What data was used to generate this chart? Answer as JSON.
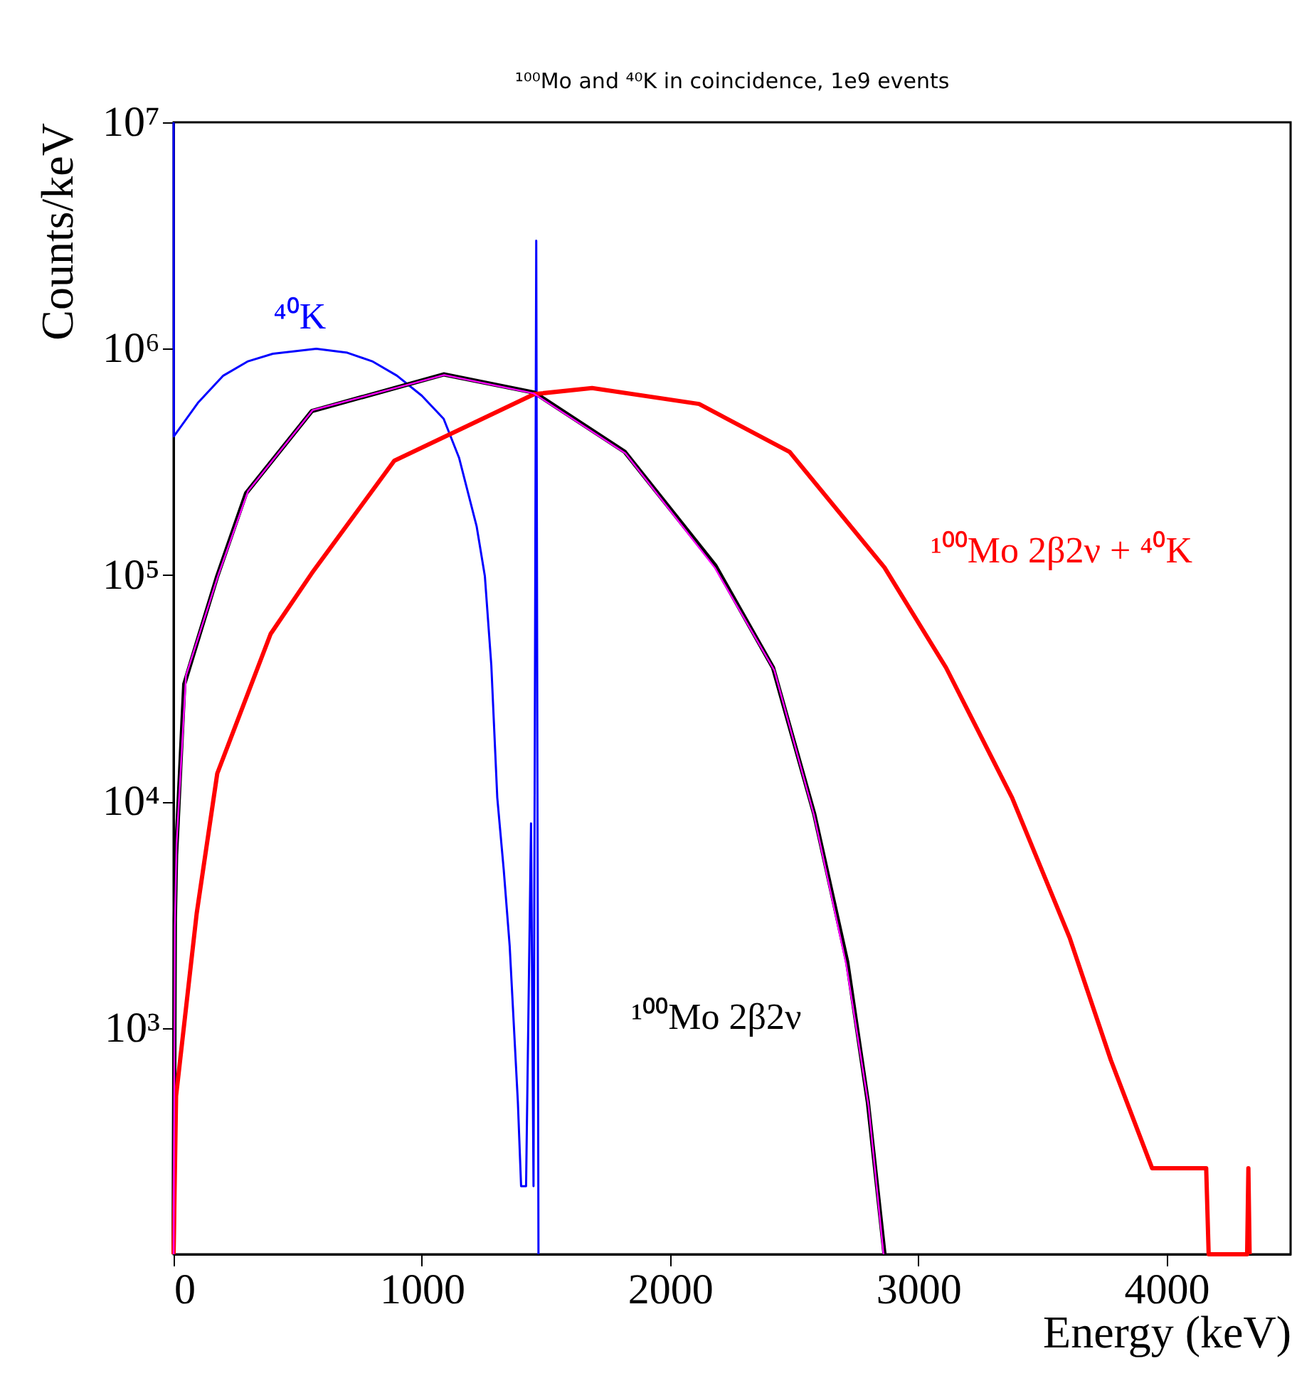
{
  "chart_data": {
    "type": "line",
    "title": "¹⁰⁰Mo and ⁴⁰K in coincidence, 1e9 events",
    "xlabel": "Energy (keV)",
    "ylabel": "Counts/keV",
    "log": "y",
    "grid": false,
    "marker": "none",
    "line_style": "solid",
    "xlim": [
      0,
      4500
    ],
    "xticks": [
      0,
      1000,
      2000,
      3000,
      4000
    ],
    "ylim": [
      100,
      10000000
    ],
    "yticks": [
      {
        "value": 1000,
        "label": "10³"
      },
      {
        "value": 10000,
        "label": "10⁴"
      },
      {
        "value": 100000,
        "label": "10⁵"
      },
      {
        "value": 1000000,
        "label": "10⁶"
      },
      {
        "value": 10000000,
        "label": "10⁷"
      }
    ],
    "series": [
      {
        "color": "#0000ff",
        "x": [
          0,
          1,
          100,
          200,
          300,
          400,
          575,
          700,
          800,
          900,
          1000,
          1088,
          1150,
          1221,
          1254,
          1280,
          1304,
          1330,
          1354,
          1387,
          1400,
          1420,
          1440,
          1450,
          1461,
          1470
        ],
        "values": [
          10000000,
          410000,
          580000,
          760000,
          880000,
          950000,
          1000000,
          960000,
          880000,
          760000,
          620000,
          490000,
          330000,
          164000,
          99000,
          40000,
          10400,
          5000,
          2300,
          470,
          200,
          200,
          8000,
          200,
          3000000,
          100
        ]
      },
      {
        "color": "#000000",
        "x": [
          0,
          5,
          10,
          43,
          176,
          292,
          557,
          1088,
          1453,
          1818,
          2183,
          2415,
          2581,
          2714,
          2797,
          2864
        ],
        "values": [
          100,
          3000,
          5800,
          33000,
          99000,
          230000,
          530000,
          770000,
          640000,
          350000,
          110000,
          39000,
          8800,
          1950,
          470,
          100
        ]
      },
      {
        "color": "#ff0000",
        "x": [
          0,
          10,
          93,
          176,
          391,
          557,
          889,
          1453,
          1686,
          2117,
          2482,
          2864,
          3112,
          3378,
          3610,
          3776,
          3942,
          4139,
          4160,
          4170,
          4325,
          4330,
          4335
        ],
        "values": [
          100,
          500,
          3200,
          13300,
          55000,
          102000,
          320000,
          630000,
          670000,
          570000,
          350000,
          108000,
          39000,
          10400,
          2500,
          720,
          240,
          240,
          240,
          100,
          100,
          240,
          100
        ]
      },
      {
        "color": "#ff00ff",
        "x": [
          0,
          5,
          12,
          50,
          180,
          300,
          560,
          1090,
          1450,
          1820,
          2180,
          2420,
          2580,
          2710,
          2800,
          2860
        ],
        "values": [
          100,
          2800,
          6500,
          36000,
          100000,
          235000,
          535000,
          765000,
          635000,
          345000,
          108000,
          38000,
          8700,
          1900,
          450,
          100
        ]
      }
    ],
    "annotations": [
      "⁴⁰K",
      "¹⁰⁰Mo 2β2ν",
      "¹⁰⁰Mo 2β2ν + ⁴⁰K"
    ]
  }
}
